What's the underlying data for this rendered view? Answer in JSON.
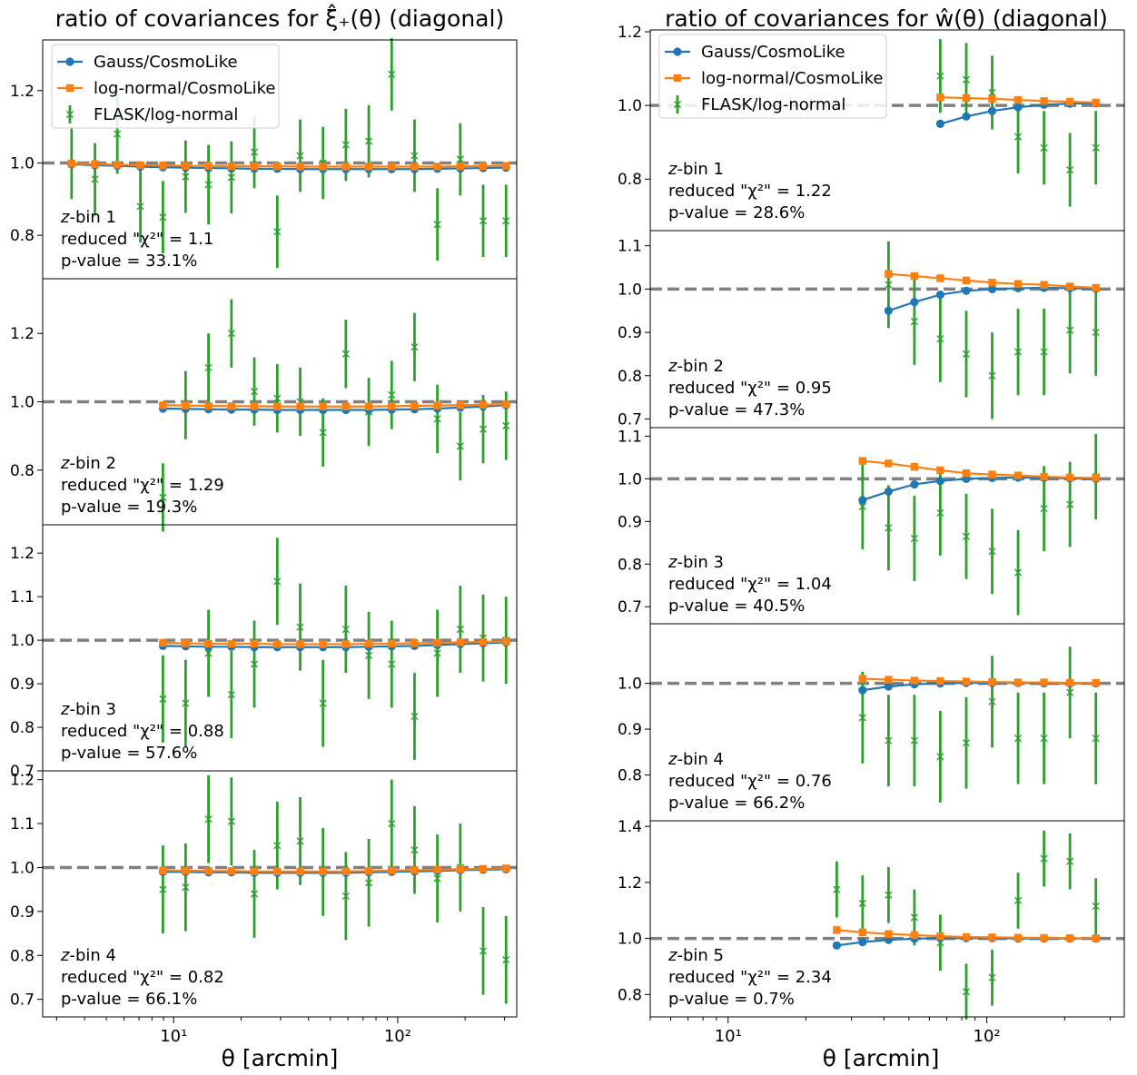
{
  "colors": {
    "gauss": "#1f77b4",
    "lognormal": "#ff7f0e",
    "flask": "#2ca02c",
    "ref_line": "#808080"
  },
  "legend": [
    "Gauss/CosmoLike",
    "log-normal/CosmoLike",
    "FLASK/log-normal"
  ],
  "chart_data": [
    {
      "type": "line",
      "title": "ratio of covariances for ξ̂₊(θ) (diagonal)",
      "xlabel": "θ [arcmin]",
      "xscale": "log",
      "xlim": [
        2.6,
        340
      ],
      "xticks": [
        {
          "value": 10,
          "label": "10¹"
        },
        {
          "value": 100,
          "label": "10²"
        }
      ],
      "reference_line": 1.0,
      "legend": "top-left of first panel",
      "panels": [
        {
          "zbin": "z-bin 1",
          "chi2": "reduced \"χ²\" = 1.1",
          "pvalue": "p-value = 33.1%",
          "ylim": [
            0.68,
            1.34
          ],
          "yticks": [
            0.8,
            1.0,
            1.2
          ],
          "x": [
            3.5,
            4.45,
            5.6,
            7.1,
            8.95,
            11.3,
            14.3,
            18.1,
            22.9,
            29.0,
            36.7,
            46.4,
            58.7,
            74.3,
            94.0,
            118.9,
            150.4,
            190.3,
            240.8,
            304.6
          ],
          "gauss": [
            0.996,
            0.994,
            0.992,
            0.99,
            0.988,
            0.987,
            0.986,
            0.985,
            0.984,
            0.984,
            0.983,
            0.983,
            0.983,
            0.983,
            0.983,
            0.983,
            0.984,
            0.985,
            0.986,
            0.987
          ],
          "lognormal": [
            0.998,
            0.997,
            0.995,
            0.994,
            0.993,
            0.992,
            0.992,
            0.991,
            0.991,
            0.991,
            0.99,
            0.99,
            0.99,
            0.99,
            0.99,
            0.99,
            0.99,
            0.991,
            0.991,
            0.992
          ],
          "flask": [
            1.0,
            0.955,
            1.08,
            0.88,
            0.85,
            0.962,
            0.94,
            0.96,
            1.03,
            0.81,
            1.02,
            1.0,
            1.05,
            1.06,
            1.245,
            1.02,
            0.83,
            1.01,
            0.84,
            0.84
          ],
          "flask_err": [
            0.1,
            0.1,
            0.11,
            0.1,
            0.1,
            0.1,
            0.11,
            0.1,
            0.1,
            0.1,
            0.1,
            0.1,
            0.1,
            0.1,
            0.1,
            0.1,
            0.1,
            0.1,
            0.1,
            0.1
          ]
        },
        {
          "zbin": "z-bin 2",
          "chi2": "reduced \"χ²\" = 1.29",
          "pvalue": "p-value = 19.3%",
          "ylim": [
            0.64,
            1.36
          ],
          "yticks": [
            0.8,
            1.0,
            1.2
          ],
          "x": [
            8.95,
            11.3,
            14.3,
            18.1,
            22.9,
            29.0,
            36.7,
            46.4,
            58.7,
            74.3,
            94.0,
            118.9,
            150.4,
            190.3,
            240.8,
            304.6
          ],
          "gauss": [
            0.98,
            0.979,
            0.978,
            0.977,
            0.977,
            0.976,
            0.976,
            0.976,
            0.976,
            0.976,
            0.977,
            0.978,
            0.98,
            0.983,
            0.986,
            0.99
          ],
          "lognormal": [
            0.99,
            0.989,
            0.988,
            0.987,
            0.987,
            0.986,
            0.986,
            0.986,
            0.986,
            0.986,
            0.987,
            0.988,
            0.989,
            0.99,
            0.991,
            0.993
          ],
          "flask": [
            0.72,
            0.99,
            1.1,
            1.2,
            1.03,
            1.01,
            1.0,
            0.91,
            1.14,
            0.97,
            1.02,
            1.16,
            0.95,
            0.87,
            0.92,
            0.93
          ],
          "flask_err": [
            0.1,
            0.1,
            0.1,
            0.1,
            0.1,
            0.1,
            0.1,
            0.1,
            0.1,
            0.1,
            0.1,
            0.1,
            0.1,
            0.1,
            0.1,
            0.1
          ]
        },
        {
          "zbin": "z-bin 3",
          "chi2": "reduced \"χ²\" = 0.88",
          "pvalue": "p-value = 57.6%",
          "ylim": [
            0.7,
            1.265
          ],
          "yticks": [
            0.7,
            0.8,
            0.9,
            1.0,
            1.1,
            1.2
          ],
          "x": [
            8.95,
            11.3,
            14.3,
            18.1,
            22.9,
            29.0,
            36.7,
            46.4,
            58.7,
            74.3,
            94.0,
            118.9,
            150.4,
            190.3,
            240.8,
            304.6
          ],
          "gauss": [
            0.987,
            0.986,
            0.985,
            0.985,
            0.984,
            0.984,
            0.984,
            0.984,
            0.984,
            0.985,
            0.986,
            0.987,
            0.989,
            0.991,
            0.993,
            0.995
          ],
          "lognormal": [
            0.994,
            0.993,
            0.992,
            0.992,
            0.992,
            0.991,
            0.991,
            0.991,
            0.991,
            0.992,
            0.992,
            0.993,
            0.994,
            0.995,
            0.996,
            0.997
          ],
          "flask": [
            0.865,
            0.855,
            0.97,
            0.875,
            0.945,
            1.135,
            1.03,
            0.855,
            1.025,
            0.965,
            0.945,
            0.825,
            0.97,
            1.025,
            1.005,
            1.0
          ],
          "flask_err": [
            0.1,
            0.1,
            0.1,
            0.1,
            0.1,
            0.1,
            0.1,
            0.1,
            0.1,
            0.1,
            0.1,
            0.1,
            0.1,
            0.1,
            0.1,
            0.1
          ]
        },
        {
          "zbin": "z-bin 4",
          "chi2": "reduced \"χ²\" = 0.82",
          "pvalue": "p-value = 66.1%",
          "ylim": [
            0.66,
            1.22
          ],
          "yticks": [
            0.7,
            0.8,
            0.9,
            1.0,
            1.1,
            1.2
          ],
          "x": [
            8.95,
            11.3,
            14.3,
            18.1,
            22.9,
            29.0,
            36.7,
            46.4,
            58.7,
            74.3,
            94.0,
            118.9,
            150.4,
            190.3,
            240.8,
            304.6
          ],
          "gauss": [
            0.99,
            0.99,
            0.989,
            0.989,
            0.988,
            0.988,
            0.988,
            0.988,
            0.988,
            0.989,
            0.99,
            0.991,
            0.992,
            0.994,
            0.995,
            0.996
          ],
          "lognormal": [
            0.993,
            0.993,
            0.992,
            0.992,
            0.991,
            0.991,
            0.991,
            0.991,
            0.991,
            0.992,
            0.993,
            0.994,
            0.995,
            0.996,
            0.997,
            0.998
          ],
          "flask": [
            0.95,
            0.955,
            1.11,
            1.105,
            0.94,
            1.05,
            1.06,
            0.99,
            0.935,
            0.965,
            1.1,
            1.04,
            0.975,
            1.0,
            0.81,
            0.79
          ],
          "flask_err": [
            0.1,
            0.1,
            0.1,
            0.1,
            0.1,
            0.1,
            0.1,
            0.1,
            0.1,
            0.1,
            0.1,
            0.1,
            0.1,
            0.1,
            0.1,
            0.1
          ]
        }
      ]
    },
    {
      "type": "line",
      "title": "ratio of covariances for ŵ(θ) (diagonal)",
      "xlabel": "θ [arcmin]",
      "xscale": "log",
      "xlim": [
        5.0,
        340
      ],
      "xticks": [
        {
          "value": 10,
          "label": "10¹"
        },
        {
          "value": 100,
          "label": "10²"
        }
      ],
      "reference_line": 1.0,
      "legend": "top-left of first panel",
      "panels": [
        {
          "zbin": "z-bin 1",
          "chi2": "reduced \"χ²\" = 1.22",
          "pvalue": "p-value = 28.6%",
          "ylim": [
            0.66,
            1.205
          ],
          "yticks": [
            0.8,
            1.0,
            1.2
          ],
          "x": [
            66.1,
            83.3,
            104.9,
            132.1,
            166.4,
            209.6,
            264.0
          ],
          "gauss": [
            0.95,
            0.97,
            0.985,
            0.995,
            1.002,
            1.005,
            1.006
          ],
          "lognormal": [
            1.022,
            1.02,
            1.018,
            1.015,
            1.012,
            1.01,
            1.008
          ],
          "flask": [
            1.08,
            1.07,
            1.035,
            0.915,
            0.885,
            0.825,
            0.885
          ],
          "flask_err": [
            0.1,
            0.1,
            0.1,
            0.1,
            0.1,
            0.1,
            0.1
          ]
        },
        {
          "zbin": "z-bin 2",
          "chi2": "reduced \"χ²\" = 0.95",
          "pvalue": "p-value = 47.3%",
          "ylim": [
            0.68,
            1.135
          ],
          "yticks": [
            0.7,
            0.8,
            0.9,
            1.0,
            1.1
          ],
          "x": [
            41.7,
            52.5,
            66.1,
            83.3,
            104.9,
            132.1,
            166.4,
            209.6,
            264.0
          ],
          "gauss": [
            0.95,
            0.97,
            0.987,
            0.996,
            1.0,
            1.002,
            1.003,
            1.002,
            1.001
          ],
          "lognormal": [
            1.035,
            1.03,
            1.025,
            1.02,
            1.015,
            1.012,
            1.01,
            1.006,
            1.003
          ],
          "flask": [
            1.01,
            0.925,
            0.885,
            0.85,
            0.8,
            0.855,
            0.855,
            0.905,
            0.9
          ],
          "flask_err": [
            0.1,
            0.1,
            0.1,
            0.1,
            0.1,
            0.1,
            0.1,
            0.1,
            0.1
          ]
        },
        {
          "zbin": "z-bin 3",
          "chi2": "reduced \"χ²\" = 1.04",
          "pvalue": "p-value = 40.5%",
          "ylim": [
            0.66,
            1.12
          ],
          "yticks": [
            0.7,
            0.8,
            0.9,
            1.0,
            1.1
          ],
          "x": [
            33.1,
            41.7,
            52.5,
            66.1,
            83.3,
            104.9,
            132.1,
            166.4,
            209.6,
            264.0
          ],
          "gauss": [
            0.95,
            0.97,
            0.987,
            0.995,
            1.0,
            1.002,
            1.003,
            1.002,
            1.001,
            1.0
          ],
          "lognormal": [
            1.042,
            1.036,
            1.028,
            1.02,
            1.013,
            1.01,
            1.008,
            1.005,
            1.003,
            1.002
          ],
          "flask": [
            0.935,
            0.885,
            0.86,
            0.92,
            0.865,
            0.83,
            0.78,
            0.93,
            0.94,
            1.005
          ],
          "flask_err": [
            0.1,
            0.1,
            0.1,
            0.1,
            0.1,
            0.1,
            0.1,
            0.1,
            0.1,
            0.1
          ]
        },
        {
          "zbin": "z-bin 4",
          "chi2": "reduced \"χ²\" = 0.76",
          "pvalue": "p-value = 66.2%",
          "ylim": [
            0.7,
            1.13
          ],
          "yticks": [
            0.8,
            0.9,
            1.0
          ],
          "x": [
            33.1,
            41.7,
            52.5,
            66.1,
            83.3,
            104.9,
            132.1,
            166.4,
            209.6,
            264.0
          ],
          "gauss": [
            0.985,
            0.993,
            0.998,
            1.0,
            1.001,
            1.001,
            1.001,
            1.0,
            1.0,
            1.0
          ],
          "lognormal": [
            1.01,
            1.008,
            1.006,
            1.005,
            1.004,
            1.003,
            1.002,
            1.002,
            1.001,
            1.001
          ],
          "flask": [
            0.925,
            0.875,
            0.875,
            0.84,
            0.87,
            0.96,
            0.88,
            0.88,
            0.98,
            0.88
          ],
          "flask_err": [
            0.1,
            0.1,
            0.1,
            0.1,
            0.1,
            0.1,
            0.1,
            0.1,
            0.1,
            0.1
          ]
        },
        {
          "zbin": "z-bin 5",
          "chi2": "reduced \"χ²\" = 2.34",
          "pvalue": "p-value = 0.7%",
          "ylim": [
            0.72,
            1.42
          ],
          "yticks": [
            0.8,
            1.0,
            1.2,
            1.4
          ],
          "x": [
            26.3,
            33.1,
            41.7,
            52.5,
            66.1,
            83.3,
            104.9,
            132.1,
            166.4,
            209.6,
            264.0
          ],
          "gauss": [
            0.975,
            0.987,
            0.995,
            0.999,
            1.001,
            1.001,
            1.001,
            1.0,
            1.0,
            1.0,
            1.0
          ],
          "lognormal": [
            1.03,
            1.022,
            1.016,
            1.012,
            1.008,
            1.005,
            1.004,
            1.003,
            1.002,
            1.001,
            1.001
          ],
          "flask": [
            1.175,
            1.125,
            1.155,
            1.075,
            0.985,
            0.81,
            0.86,
            1.135,
            1.285,
            1.275,
            1.115
          ],
          "flask_err": [
            0.1,
            0.1,
            0.1,
            0.1,
            0.1,
            0.1,
            0.1,
            0.1,
            0.1,
            0.1,
            0.1
          ]
        }
      ]
    }
  ]
}
